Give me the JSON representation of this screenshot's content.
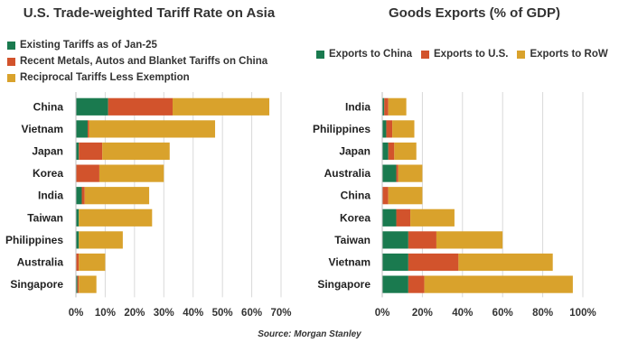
{
  "colors": {
    "green": "#1a7a4f",
    "red": "#d2532c",
    "gold": "#d9a22c",
    "grid": "#d9d9d9"
  },
  "source": "Source: Morgan Stanley",
  "chart_data": [
    {
      "type": "bar",
      "orientation": "horizontal",
      "stacked": true,
      "title": "U.S. Trade-weighted Tariff Rate on Asia",
      "categories": [
        "China",
        "Vietnam",
        "Japan",
        "Korea",
        "India",
        "Taiwan",
        "Philippines",
        "Australia",
        "Singapore"
      ],
      "series": [
        {
          "name": "Existing Tariffs as of Jan-25",
          "color": "#1a7a4f",
          "values": [
            11,
            4,
            1,
            0,
            2,
            1,
            1,
            0,
            0.5
          ]
        },
        {
          "name": "Recent Metals, Autos and Blanket Tariffs on China",
          "color": "#d2532c",
          "values": [
            22,
            0.5,
            8,
            8,
            1,
            0,
            0,
            1,
            0.5
          ]
        },
        {
          "name": "Reciprocal Tariffs Less Exemption",
          "color": "#d9a22c",
          "values": [
            33,
            43,
            23,
            22,
            22,
            25,
            15,
            9,
            6
          ]
        }
      ],
      "xlim": [
        0,
        70
      ],
      "xticks": [
        "0%",
        "10%",
        "20%",
        "30%",
        "40%",
        "50%",
        "60%",
        "70%"
      ],
      "grid": true,
      "legend_position": "top-left"
    },
    {
      "type": "bar",
      "orientation": "horizontal",
      "stacked": true,
      "title": "Goods Exports (% of GDP)",
      "categories": [
        "India",
        "Philippines",
        "Japan",
        "Australia",
        "China",
        "Korea",
        "Taiwan",
        "Vietnam",
        "Singapore"
      ],
      "series": [
        {
          "name": "Exports to China",
          "color": "#1a7a4f",
          "values": [
            1,
            2,
            3,
            7,
            0,
            7,
            13,
            13,
            13
          ]
        },
        {
          "name": "Exports to U.S.",
          "color": "#d2532c",
          "values": [
            2,
            3,
            3,
            1,
            3,
            7,
            14,
            25,
            8
          ]
        },
        {
          "name": "Exports to RoW",
          "color": "#d9a22c",
          "values": [
            9,
            11,
            11,
            12,
            17,
            22,
            33,
            47,
            74
          ]
        }
      ],
      "xlim": [
        0,
        100
      ],
      "xticks": [
        "0%",
        "20%",
        "40%",
        "60%",
        "80%",
        "100%"
      ],
      "grid": true,
      "legend_position": "top"
    }
  ]
}
